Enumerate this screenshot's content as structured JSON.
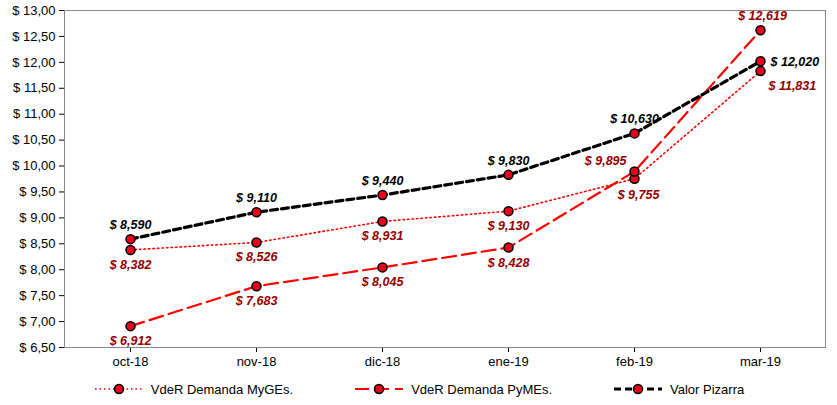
{
  "chart_data": {
    "type": "line",
    "categories": [
      "oct-18",
      "nov-18",
      "dic-18",
      "ene-19",
      "feb-19",
      "mar-19"
    ],
    "ylim": [
      6.5,
      13
    ],
    "yticks": [
      {
        "value": 6.5,
        "label": "$ 6,50"
      },
      {
        "value": 7,
        "label": "$ 7,00"
      },
      {
        "value": 7.5,
        "label": "$ 7,50"
      },
      {
        "value": 8,
        "label": "$ 8,00"
      },
      {
        "value": 8.5,
        "label": "$ 8,50"
      },
      {
        "value": 9,
        "label": "$ 9,00"
      },
      {
        "value": 9.5,
        "label": "$ 9,50"
      },
      {
        "value": 10,
        "label": "$ 10,00"
      },
      {
        "value": 10.5,
        "label": "$ 10,50"
      },
      {
        "value": 11,
        "label": "$ 11,00"
      },
      {
        "value": 11.5,
        "label": "$ 11,50"
      },
      {
        "value": 12,
        "label": "$ 12,00"
      },
      {
        "value": 12.5,
        "label": "$ 12,50"
      },
      {
        "value": 13,
        "label": "$ 13,00"
      }
    ],
    "grid": false,
    "legend": "bottom",
    "data_labels": true,
    "series": [
      {
        "name": "VdeR Demanda MyGEs.",
        "color": "#ff0000",
        "line_style": "dotted",
        "marker": "circle",
        "values": [
          8.382,
          8.526,
          8.931,
          9.13,
          9.755,
          11.831
        ],
        "value_labels": [
          "$ 8,382",
          "$ 8,526",
          "$ 8,931",
          "$ 9,130",
          "$ 9,755",
          "$ 11,831"
        ]
      },
      {
        "name": "VdeR Demanda PyMEs.",
        "color": "#ff0000",
        "line_style": "dashed",
        "marker": "circle",
        "values": [
          6.912,
          7.683,
          8.045,
          8.428,
          9.895,
          12.619
        ],
        "value_labels": [
          "$ 6,912",
          "$ 7,683",
          "$ 8,045",
          "$ 8,428",
          "$ 9,895",
          "$ 12,619"
        ]
      },
      {
        "name": "Valor Pizarra",
        "color": "#000000",
        "line_style": "dashed",
        "marker": "circle",
        "values": [
          8.59,
          9.11,
          9.44,
          9.83,
          10.63,
          12.02
        ],
        "value_labels": [
          "$ 8,590",
          "$ 9,110",
          "$ 9,440",
          "$ 9,830",
          "$ 10,630",
          "$ 12,020"
        ]
      }
    ]
  }
}
